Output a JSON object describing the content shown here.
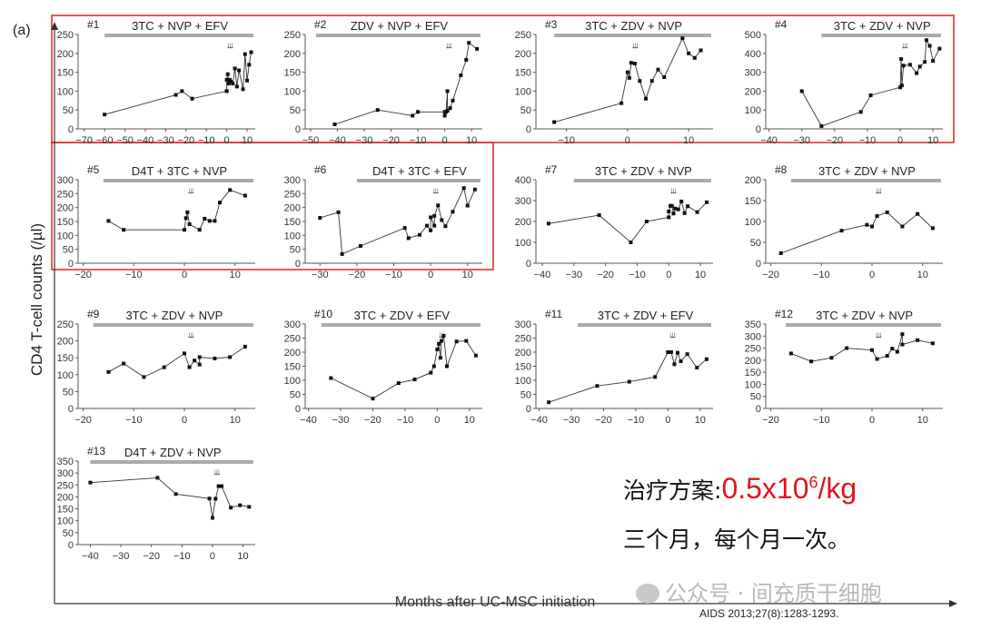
{
  "figure_label": "(a)",
  "ylabel": "CD4 T-cell counts (/µl)",
  "xlabel": "Months after UC-MSC initiation",
  "citation": "AIDS 2013;27(8):1283-1293.",
  "annotation": {
    "line1_prefix": "治疗方案:",
    "dose_base": "0.5x10",
    "dose_exp": "6",
    "dose_unit": "/kg",
    "line2": "三个月，每个月一次。"
  },
  "watermark": "公众号 · 间充质干细胞",
  "colors": {
    "highlight_box": "#e02020",
    "regimen_bar": "#aaaaaa",
    "dose_text": "#e0141e",
    "line": "#333333"
  },
  "arrows_glyph": "↓↓↓",
  "chart_data": [
    {
      "type": "line",
      "title": "#1",
      "regimen": "3TC + NVP + EFV",
      "xlim": [
        -73,
        14
      ],
      "xticks": [
        -70,
        -60,
        -50,
        -40,
        -30,
        -20,
        -10,
        0,
        10
      ],
      "ylim": [
        0,
        250
      ],
      "yticks": [
        0,
        50,
        100,
        150,
        200,
        250
      ],
      "regimen_start": -60,
      "x": [
        -60,
        -25,
        -22,
        -17,
        0,
        0,
        0,
        0.5,
        1,
        1.5,
        2,
        3,
        4,
        5,
        6,
        8,
        9,
        10,
        11,
        12
      ],
      "y": [
        38,
        90,
        100,
        80,
        100,
        100,
        130,
        145,
        120,
        130,
        125,
        120,
        160,
        112,
        155,
        105,
        198,
        128,
        170,
        203
      ]
    },
    {
      "type": "line",
      "title": "#2",
      "regimen": "ZDV + NVP + EFV",
      "xlim": [
        -52,
        14
      ],
      "xticks": [
        -50,
        -40,
        -30,
        -20,
        -10,
        0,
        10
      ],
      "ylim": [
        0,
        250
      ],
      "yticks": [
        0,
        50,
        100,
        150,
        200,
        250
      ],
      "regimen_start": -48,
      "x": [
        -41,
        -25,
        -12,
        -10,
        0,
        0,
        0.5,
        1,
        1,
        2,
        3,
        6,
        8,
        9,
        12
      ],
      "y": [
        12,
        50,
        35,
        45,
        45,
        35,
        45,
        100,
        48,
        55,
        75,
        142,
        183,
        228,
        212
      ]
    },
    {
      "type": "line",
      "title": "#3",
      "regimen": "3TC + ZDV + NVP",
      "xlim": [
        -15,
        14
      ],
      "xticks": [
        -10,
        0,
        10
      ],
      "ylim": [
        0,
        250
      ],
      "yticks": [
        0,
        50,
        100,
        150,
        200,
        250
      ],
      "regimen_start": -12,
      "x": [
        -12,
        -1,
        0,
        0.3,
        0.6,
        1.2,
        2,
        3,
        4,
        5,
        6,
        9,
        10,
        11,
        12
      ],
      "y": [
        18,
        68,
        150,
        135,
        175,
        173,
        127,
        80,
        127,
        157,
        137,
        240,
        200,
        188,
        208
      ]
    },
    {
      "type": "line",
      "title": "#4",
      "regimen": "3TC + ZDV + NVP",
      "xlim": [
        -41,
        13
      ],
      "xticks": [
        -40,
        -30,
        -20,
        -10,
        0,
        10
      ],
      "ylim": [
        0,
        500
      ],
      "yticks": [
        0,
        100,
        200,
        300,
        400,
        500
      ],
      "regimen_start": -24,
      "x": [
        -30,
        -24,
        -12,
        -9,
        0,
        0.3,
        0.5,
        1,
        3,
        5,
        6,
        7.5,
        8,
        9,
        10,
        12
      ],
      "y": [
        200,
        15,
        90,
        178,
        220,
        370,
        230,
        335,
        340,
        295,
        330,
        355,
        470,
        440,
        360,
        425
      ]
    },
    {
      "type": "line",
      "title": "#5",
      "regimen": "D4T + 3TC + NVP",
      "xlim": [
        -21,
        14
      ],
      "xticks": [
        -20,
        -10,
        0,
        10
      ],
      "ylim": [
        0,
        300
      ],
      "yticks": [
        0,
        50,
        100,
        150,
        200,
        250,
        300
      ],
      "regimen_start": -16,
      "x": [
        -15,
        -12,
        0,
        0.3,
        0.6,
        1,
        3,
        4,
        5,
        6,
        7,
        9,
        12
      ],
      "y": [
        152,
        120,
        120,
        162,
        183,
        140,
        120,
        160,
        152,
        152,
        218,
        263,
        243
      ]
    },
    {
      "type": "line",
      "title": "#6",
      "regimen": "D4T + 3TC + EFV",
      "xlim": [
        -34,
        14
      ],
      "xticks": [
        -30,
        -20,
        -10,
        0,
        10
      ],
      "ylim": [
        0,
        300
      ],
      "yticks": [
        0,
        50,
        100,
        150,
        200,
        250,
        300
      ],
      "regimen_start": -20,
      "x": [
        -30,
        -25,
        -24,
        -19,
        -7,
        -6,
        -3,
        -1,
        0,
        0,
        1,
        1,
        2,
        3,
        4,
        6,
        9,
        10,
        12
      ],
      "y": [
        163,
        183,
        33,
        62,
        127,
        90,
        102,
        135,
        118,
        165,
        135,
        170,
        208,
        155,
        133,
        185,
        270,
        207,
        265
      ]
    },
    {
      "type": "line",
      "title": "#7",
      "regimen": "3TC + ZDV + NVP",
      "xlim": [
        -42,
        14
      ],
      "xticks": [
        -40,
        -30,
        -20,
        -10,
        0,
        10
      ],
      "ylim": [
        0,
        400
      ],
      "yticks": [
        0,
        100,
        200,
        300,
        400
      ],
      "regimen_start": -30,
      "x": [
        -38,
        -22,
        -12,
        -7,
        0,
        0,
        0.5,
        1,
        1.5,
        2,
        3,
        4,
        5,
        6,
        9,
        12
      ],
      "y": [
        190,
        230,
        100,
        200,
        220,
        248,
        275,
        275,
        238,
        262,
        258,
        296,
        240,
        273,
        245,
        292
      ]
    },
    {
      "type": "line",
      "title": "#8",
      "regimen": "3TC + ZDV + NVP",
      "xlim": [
        -21,
        14
      ],
      "xticks": [
        -20,
        -10,
        0,
        10
      ],
      "ylim": [
        0,
        200
      ],
      "yticks": [
        0,
        50,
        100,
        150,
        200
      ],
      "regimen_start": -16,
      "x": [
        -18,
        -6,
        -1,
        0,
        1,
        3,
        6,
        9,
        12
      ],
      "y": [
        24,
        78,
        92,
        88,
        113,
        122,
        88,
        118,
        84
      ]
    },
    {
      "type": "line",
      "title": "#9",
      "regimen": "3TC + ZDV + NVP",
      "xlim": [
        -21,
        14
      ],
      "xticks": [
        -20,
        -10,
        0,
        10
      ],
      "ylim": [
        0,
        250
      ],
      "yticks": [
        0,
        50,
        100,
        150,
        200,
        250
      ],
      "regimen_start": -18,
      "x": [
        -15,
        -12,
        -8,
        -4,
        0,
        1,
        2,
        3,
        3,
        6,
        9,
        12
      ],
      "y": [
        108,
        133,
        93,
        122,
        163,
        122,
        142,
        130,
        152,
        148,
        152,
        183
      ]
    },
    {
      "type": "line",
      "title": "#10",
      "regimen": "3TC + ZDV + EFV",
      "xlim": [
        -41,
        14
      ],
      "xticks": [
        -40,
        -30,
        -20,
        -10,
        0,
        10
      ],
      "ylim": [
        0,
        300
      ],
      "yticks": [
        0,
        50,
        100,
        150,
        200,
        250,
        300
      ],
      "regimen_start": -36,
      "x": [
        -33,
        -20,
        -12,
        -7,
        -2,
        -1,
        0,
        0.5,
        1,
        1.3,
        2,
        3,
        6,
        9,
        12
      ],
      "y": [
        108,
        35,
        90,
        103,
        127,
        150,
        210,
        230,
        180,
        240,
        258,
        150,
        238,
        240,
        188
      ]
    },
    {
      "type": "line",
      "title": "#11",
      "regimen": "3TC + ZDV + EFV",
      "xlim": [
        -41,
        14
      ],
      "xticks": [
        -40,
        -30,
        -20,
        -10,
        0,
        10
      ],
      "ylim": [
        0,
        300
      ],
      "yticks": [
        0,
        50,
        100,
        150,
        200,
        250,
        300
      ],
      "regimen_start": -28,
      "x": [
        -37,
        -22,
        -12,
        -4,
        0,
        1,
        2,
        3,
        4,
        6,
        9,
        12
      ],
      "y": [
        22,
        80,
        95,
        112,
        200,
        200,
        157,
        198,
        168,
        193,
        145,
        175
      ]
    },
    {
      "type": "line",
      "title": "#12",
      "regimen": "3TC + ZDV + NVP",
      "xlim": [
        -21,
        14
      ],
      "xticks": [
        -20,
        -10,
        0,
        10
      ],
      "ylim": [
        0,
        350
      ],
      "yticks": [
        0,
        50,
        100,
        150,
        200,
        250,
        300,
        350
      ],
      "regimen_start": -17,
      "x": [
        -16,
        -12,
        -8,
        -5,
        0,
        1,
        3,
        4,
        5,
        6,
        6,
        9,
        12
      ],
      "y": [
        228,
        195,
        210,
        250,
        242,
        205,
        218,
        248,
        235,
        308,
        265,
        283,
        270
      ]
    },
    {
      "type": "line",
      "title": "#13",
      "regimen": "D4T + ZDV + NVP",
      "xlim": [
        -44,
        14
      ],
      "xticks": [
        -40,
        -30,
        -20,
        -10,
        0,
        10
      ],
      "ylim": [
        0,
        350
      ],
      "yticks": [
        0,
        50,
        100,
        150,
        200,
        250,
        300,
        350
      ],
      "regimen_start": -40,
      "x": [
        -40,
        -18,
        -12,
        -1,
        0,
        1,
        2,
        3,
        6,
        9,
        12
      ],
      "y": [
        260,
        280,
        212,
        193,
        112,
        192,
        245,
        245,
        155,
        165,
        158
      ]
    }
  ]
}
